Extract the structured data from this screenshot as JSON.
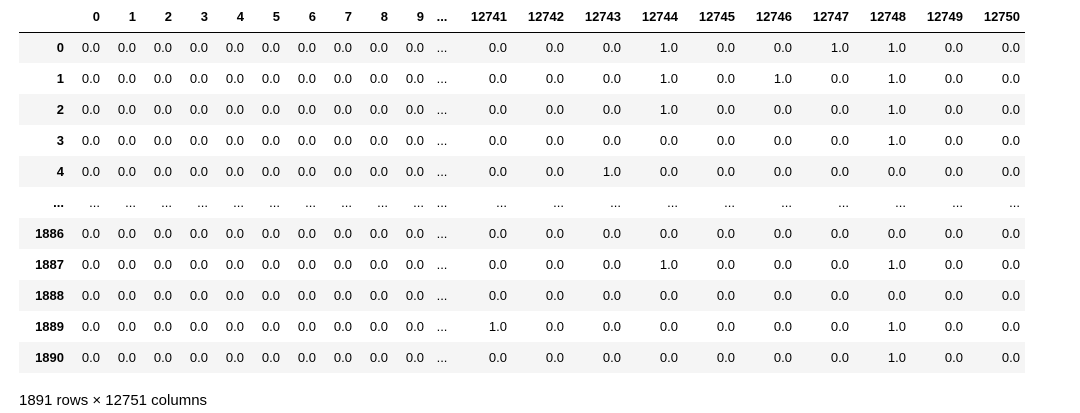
{
  "dataframe": {
    "columns": [
      "0",
      "1",
      "2",
      "3",
      "4",
      "5",
      "6",
      "7",
      "8",
      "9",
      "...",
      "12741",
      "12742",
      "12743",
      "12744",
      "12745",
      "12746",
      "12747",
      "12748",
      "12749",
      "12750"
    ],
    "rows": [
      {
        "index": "0",
        "cells": [
          "0.0",
          "0.0",
          "0.0",
          "0.0",
          "0.0",
          "0.0",
          "0.0",
          "0.0",
          "0.0",
          "0.0",
          "...",
          "0.0",
          "0.0",
          "0.0",
          "1.0",
          "0.0",
          "0.0",
          "1.0",
          "1.0",
          "0.0",
          "0.0"
        ]
      },
      {
        "index": "1",
        "cells": [
          "0.0",
          "0.0",
          "0.0",
          "0.0",
          "0.0",
          "0.0",
          "0.0",
          "0.0",
          "0.0",
          "0.0",
          "...",
          "0.0",
          "0.0",
          "0.0",
          "1.0",
          "0.0",
          "1.0",
          "0.0",
          "1.0",
          "0.0",
          "0.0"
        ]
      },
      {
        "index": "2",
        "cells": [
          "0.0",
          "0.0",
          "0.0",
          "0.0",
          "0.0",
          "0.0",
          "0.0",
          "0.0",
          "0.0",
          "0.0",
          "...",
          "0.0",
          "0.0",
          "0.0",
          "1.0",
          "0.0",
          "0.0",
          "0.0",
          "1.0",
          "0.0",
          "0.0"
        ]
      },
      {
        "index": "3",
        "cells": [
          "0.0",
          "0.0",
          "0.0",
          "0.0",
          "0.0",
          "0.0",
          "0.0",
          "0.0",
          "0.0",
          "0.0",
          "...",
          "0.0",
          "0.0",
          "0.0",
          "0.0",
          "0.0",
          "0.0",
          "0.0",
          "1.0",
          "0.0",
          "0.0"
        ]
      },
      {
        "index": "4",
        "cells": [
          "0.0",
          "0.0",
          "0.0",
          "0.0",
          "0.0",
          "0.0",
          "0.0",
          "0.0",
          "0.0",
          "0.0",
          "...",
          "0.0",
          "0.0",
          "1.0",
          "0.0",
          "0.0",
          "0.0",
          "0.0",
          "0.0",
          "0.0",
          "0.0"
        ]
      },
      {
        "index": "...",
        "cells": [
          "...",
          "...",
          "...",
          "...",
          "...",
          "...",
          "...",
          "...",
          "...",
          "...",
          "...",
          "...",
          "...",
          "...",
          "...",
          "...",
          "...",
          "...",
          "...",
          "...",
          "..."
        ]
      },
      {
        "index": "1886",
        "cells": [
          "0.0",
          "0.0",
          "0.0",
          "0.0",
          "0.0",
          "0.0",
          "0.0",
          "0.0",
          "0.0",
          "0.0",
          "...",
          "0.0",
          "0.0",
          "0.0",
          "0.0",
          "0.0",
          "0.0",
          "0.0",
          "0.0",
          "0.0",
          "0.0"
        ]
      },
      {
        "index": "1887",
        "cells": [
          "0.0",
          "0.0",
          "0.0",
          "0.0",
          "0.0",
          "0.0",
          "0.0",
          "0.0",
          "0.0",
          "0.0",
          "...",
          "0.0",
          "0.0",
          "0.0",
          "1.0",
          "0.0",
          "0.0",
          "0.0",
          "1.0",
          "0.0",
          "0.0"
        ]
      },
      {
        "index": "1888",
        "cells": [
          "0.0",
          "0.0",
          "0.0",
          "0.0",
          "0.0",
          "0.0",
          "0.0",
          "0.0",
          "0.0",
          "0.0",
          "...",
          "0.0",
          "0.0",
          "0.0",
          "0.0",
          "0.0",
          "0.0",
          "0.0",
          "0.0",
          "0.0",
          "0.0"
        ]
      },
      {
        "index": "1889",
        "cells": [
          "0.0",
          "0.0",
          "0.0",
          "0.0",
          "0.0",
          "0.0",
          "0.0",
          "0.0",
          "0.0",
          "0.0",
          "...",
          "1.0",
          "0.0",
          "0.0",
          "0.0",
          "0.0",
          "0.0",
          "0.0",
          "1.0",
          "0.0",
          "0.0"
        ]
      },
      {
        "index": "1890",
        "cells": [
          "0.0",
          "0.0",
          "0.0",
          "0.0",
          "0.0",
          "0.0",
          "0.0",
          "0.0",
          "0.0",
          "0.0",
          "...",
          "0.0",
          "0.0",
          "0.0",
          "0.0",
          "0.0",
          "0.0",
          "0.0",
          "1.0",
          "0.0",
          "0.0"
        ]
      }
    ],
    "shape_text": "1891 rows × 12751 columns"
  },
  "colors": {
    "stripe": "#f5f5f5",
    "background": "#ffffff",
    "text": "#000000"
  }
}
